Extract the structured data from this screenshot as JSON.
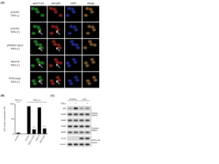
{
  "panel_a": {
    "label": "(A)",
    "columns": [
      "anti-FLAG",
      "anti-p65",
      "DAPI",
      "Merge"
    ],
    "rows": [
      [
        "pCAJH1",
        "TNFα (-)"
      ],
      [
        "pCAJH1",
        "TNFα (+)"
      ],
      [
        "pPRRSV-nsp1α",
        "TNFα (+)"
      ],
      [
        "PEDV-N",
        "TNFα (+)"
      ],
      [
        "PEDV-nsp1",
        "TNFα (+)"
      ]
    ]
  },
  "chart_data": {
    "type": "bar",
    "label": "(B)",
    "ylabel": "p65 nuclear translocation (%)",
    "groups": [
      {
        "name": "TNFα (-)",
        "categories": [
          "pCAJH1"
        ],
        "values": [
          4
        ]
      },
      {
        "name": "TNFα (+)",
        "categories": [
          "pCAJH1",
          "PRRSV-nsp1α",
          "PEDV-N",
          "PEDV-nsp1"
        ],
        "values": [
          92,
          15,
          88,
          18
        ]
      }
    ],
    "annotations": [
      {
        "text": "***",
        "group": "TNFα (+)",
        "category": "PRRSV-nsp1α"
      },
      {
        "text": "***",
        "group": "TNFα (+)",
        "category": "PEDV-nsp1"
      }
    ],
    "color": "#000000",
    "ylim": [
      0,
      100
    ],
    "yticks": [
      0,
      50,
      100
    ]
  },
  "panel_c": {
    "label": "(C)",
    "lane_groups": [
      "pCAJH1",
      "nsp1"
    ],
    "treatment": "TNFα",
    "signs": [
      "-",
      "+",
      "-",
      "+"
    ],
    "blots": [
      "p65",
      "hsp90",
      "PARP",
      "hsp90",
      "PARP",
      "FLAG",
      "β-actin"
    ],
    "fractions": [
      [
        "Nuclear",
        "fraction"
      ],
      [
        "Cytosolic",
        "fraction"
      ],
      [
        "Whole cell",
        "lysates"
      ]
    ]
  }
}
